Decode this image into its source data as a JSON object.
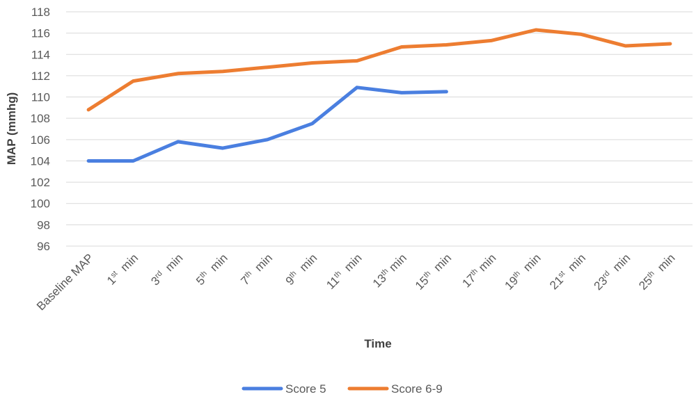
{
  "chart_data": {
    "type": "line",
    "title": "",
    "xlabel": "Time",
    "ylabel": "MAP (mmhg)",
    "ylim": [
      96,
      118
    ],
    "ytick_step": 2,
    "grid": true,
    "legend_position": "bottom",
    "categories": [
      {
        "base": "Baseline MAP",
        "sup": "",
        "tail": ""
      },
      {
        "base": "1",
        "sup": "st",
        "tail": "  min"
      },
      {
        "base": "3",
        "sup": "rd",
        "tail": "  min"
      },
      {
        "base": "5",
        "sup": "th",
        "tail": "  min"
      },
      {
        "base": "7",
        "sup": "th",
        "tail": "  min"
      },
      {
        "base": "9",
        "sup": "th",
        "tail": "  min"
      },
      {
        "base": "11",
        "sup": "th",
        "tail": "  min"
      },
      {
        "base": "13",
        "sup": "th",
        "tail": " min"
      },
      {
        "base": "15",
        "sup": "th",
        "tail": "  min"
      },
      {
        "base": "17",
        "sup": "th",
        "tail": " min"
      },
      {
        "base": "19",
        "sup": "th",
        "tail": "  min"
      },
      {
        "base": "21",
        "sup": "st",
        "tail": "  min"
      },
      {
        "base": "23",
        "sup": "rd",
        "tail": "  min"
      },
      {
        "base": "25",
        "sup": "th",
        "tail": "  min"
      }
    ],
    "series": [
      {
        "name": "Score 5",
        "color": "#4a7fe0",
        "values": [
          104.0,
          104.0,
          105.8,
          105.2,
          106.0,
          107.5,
          110.9,
          110.4,
          110.5,
          null,
          null,
          null,
          null,
          null
        ]
      },
      {
        "name": "Score 6-9",
        "color": "#ed7d31",
        "values": [
          108.8,
          111.5,
          112.2,
          112.4,
          112.8,
          113.2,
          113.4,
          114.7,
          114.9,
          115.3,
          116.3,
          115.9,
          114.8,
          115.0
        ]
      }
    ]
  }
}
